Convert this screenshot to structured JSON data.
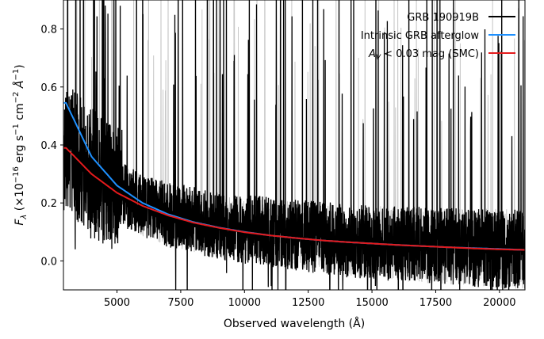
{
  "chart_data": {
    "type": "line",
    "xlabel": "Observed wavelength (Å)",
    "ylabel": "F_λ (×10^−16 erg s^−1 cm^−2 Å^−1)",
    "xlim": [
      2900,
      21000
    ],
    "ylim": [
      -0.1,
      0.9
    ],
    "xticks": [
      5000,
      7500,
      10000,
      12500,
      15000,
      17500,
      20000
    ],
    "xtick_labels": [
      "5000",
      "7500",
      "10000",
      "12500",
      "15000",
      "17500",
      "20000"
    ],
    "yticks": [
      0.0,
      0.2,
      0.4,
      0.6,
      0.8
    ],
    "ytick_labels": [
      "0.0",
      "0.2",
      "0.4",
      "0.6",
      "0.8"
    ],
    "legend_position": "top-right",
    "series": [
      {
        "name": "GRB 190919B",
        "color": "#000000",
        "kind": "noisy spectrum",
        "x": [
          3000,
          4000,
          5000,
          6000,
          7000,
          8000,
          9000,
          10000,
          11000,
          12000,
          13000,
          14000,
          15000,
          16000,
          17000,
          18000,
          19000,
          20000,
          21000
        ],
        "y": [
          0.4,
          0.3,
          0.24,
          0.19,
          0.16,
          0.14,
          0.12,
          0.11,
          0.1,
          0.09,
          0.08,
          0.07,
          0.065,
          0.06,
          0.055,
          0.05,
          0.045,
          0.042,
          0.04
        ]
      },
      {
        "name": "Intrinsic GRB afterglow",
        "color": "#1e90ff",
        "x": [
          3000,
          4000,
          5000,
          6000,
          7000,
          8000,
          9000,
          10000,
          11000,
          12000,
          13000,
          14000,
          15000,
          16000,
          17000,
          18000,
          19000,
          20000,
          21000
        ],
        "y": [
          0.545,
          0.36,
          0.26,
          0.2,
          0.161,
          0.134,
          0.115,
          0.1,
          0.088,
          0.079,
          0.071,
          0.065,
          0.06,
          0.055,
          0.051,
          0.047,
          0.044,
          0.041,
          0.038
        ]
      },
      {
        "name": "A_V < 0.03 mag (SMC)",
        "color": "#e41a1c",
        "x": [
          3000,
          4000,
          5000,
          6000,
          7000,
          8000,
          9000,
          10000,
          11000,
          12000,
          13000,
          14000,
          15000,
          16000,
          17000,
          18000,
          19000,
          20000,
          21000
        ],
        "y": [
          0.39,
          0.3,
          0.235,
          0.19,
          0.157,
          0.132,
          0.114,
          0.099,
          0.088,
          0.079,
          0.071,
          0.065,
          0.06,
          0.055,
          0.051,
          0.047,
          0.043,
          0.04,
          0.038
        ]
      }
    ]
  },
  "legend": [
    {
      "label": "GRB 190919B",
      "color": "#000000"
    },
    {
      "label": "Intrinsic GRB afterglow",
      "color": "#1e90ff"
    },
    {
      "label": "A_V < 0.03 mag (SMC)",
      "color": "#e41a1c"
    }
  ]
}
